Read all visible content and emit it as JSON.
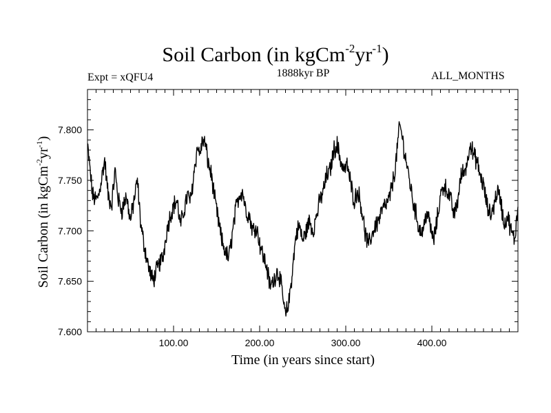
{
  "chart_data": {
    "type": "line",
    "title": "Soil Carbon (in kgCm",
    "title_exp1": "-2",
    "title_mid": "yr",
    "title_exp2": "-1",
    "title_end": ")",
    "left_label": "Expt = xQFU4",
    "subtitle": "1888kyr BP",
    "right_label": "ALL_MONTHS",
    "xlabel": "Time (in years since start)",
    "ylabel_parts": [
      "Soil Carbon (in kgCm",
      "-2",
      "yr",
      "-1",
      ")"
    ],
    "xlim": [
      0,
      500
    ],
    "ylim": [
      7.6,
      7.84
    ],
    "xticks": [
      100,
      200,
      300,
      400
    ],
    "xtick_labels": [
      "100.00",
      "200.00",
      "300.00",
      "400.00"
    ],
    "yticks": [
      7.6,
      7.65,
      7.7,
      7.75,
      7.8
    ],
    "ytick_labels": [
      "7.600",
      "7.650",
      "7.700",
      "7.750",
      "7.800"
    ],
    "series": [
      {
        "name": "Soil Carbon",
        "color": "#000000",
        "x": [
          0,
          3,
          6,
          10,
          13,
          16,
          20,
          24,
          28,
          32,
          36,
          40,
          45,
          50,
          55,
          58,
          62,
          66,
          70,
          73,
          76,
          80,
          84,
          88,
          92,
          96,
          100,
          104,
          108,
          112,
          116,
          120,
          124,
          128,
          130,
          134,
          137,
          140,
          144,
          148,
          152,
          156,
          160,
          164,
          168,
          172,
          176,
          180,
          184,
          188,
          192,
          196,
          200,
          204,
          208,
          212,
          216,
          220,
          223,
          226,
          230,
          234,
          238,
          242,
          246,
          250,
          254,
          258,
          262,
          266,
          270,
          274,
          278,
          282,
          286,
          290,
          294,
          298,
          302,
          306,
          310,
          314,
          318,
          322,
          326,
          330,
          334,
          338,
          342,
          346,
          350,
          354,
          358,
          360,
          363,
          366,
          370,
          374,
          378,
          382,
          386,
          390,
          394,
          398,
          402,
          406,
          410,
          414,
          418,
          422,
          426,
          430,
          434,
          438,
          442,
          444,
          448,
          452,
          456,
          460,
          464,
          468,
          472,
          476,
          480,
          484,
          488,
          492,
          496,
          500
        ],
        "values": [
          7.785,
          7.76,
          7.735,
          7.73,
          7.735,
          7.75,
          7.77,
          7.735,
          7.725,
          7.76,
          7.73,
          7.72,
          7.735,
          7.71,
          7.735,
          7.75,
          7.705,
          7.685,
          7.668,
          7.658,
          7.65,
          7.66,
          7.668,
          7.675,
          7.7,
          7.715,
          7.725,
          7.73,
          7.705,
          7.72,
          7.735,
          7.73,
          7.76,
          7.785,
          7.775,
          7.79,
          7.785,
          7.768,
          7.755,
          7.73,
          7.71,
          7.69,
          7.68,
          7.672,
          7.695,
          7.72,
          7.735,
          7.74,
          7.72,
          7.715,
          7.7,
          7.705,
          7.688,
          7.675,
          7.665,
          7.645,
          7.65,
          7.66,
          7.655,
          7.64,
          7.615,
          7.63,
          7.66,
          7.695,
          7.705,
          7.69,
          7.7,
          7.71,
          7.7,
          7.715,
          7.73,
          7.74,
          7.755,
          7.76,
          7.78,
          7.785,
          7.77,
          7.76,
          7.765,
          7.745,
          7.73,
          7.74,
          7.725,
          7.7,
          7.685,
          7.695,
          7.705,
          7.71,
          7.72,
          7.725,
          7.73,
          7.745,
          7.765,
          7.785,
          7.805,
          7.79,
          7.77,
          7.75,
          7.73,
          7.715,
          7.7,
          7.7,
          7.72,
          7.705,
          7.69,
          7.71,
          7.735,
          7.745,
          7.74,
          7.73,
          7.715,
          7.73,
          7.755,
          7.76,
          7.77,
          7.79,
          7.775,
          7.77,
          7.755,
          7.745,
          7.725,
          7.715,
          7.725,
          7.74,
          7.73,
          7.705,
          7.715,
          7.7,
          7.69,
          7.725
        ]
      }
    ]
  }
}
